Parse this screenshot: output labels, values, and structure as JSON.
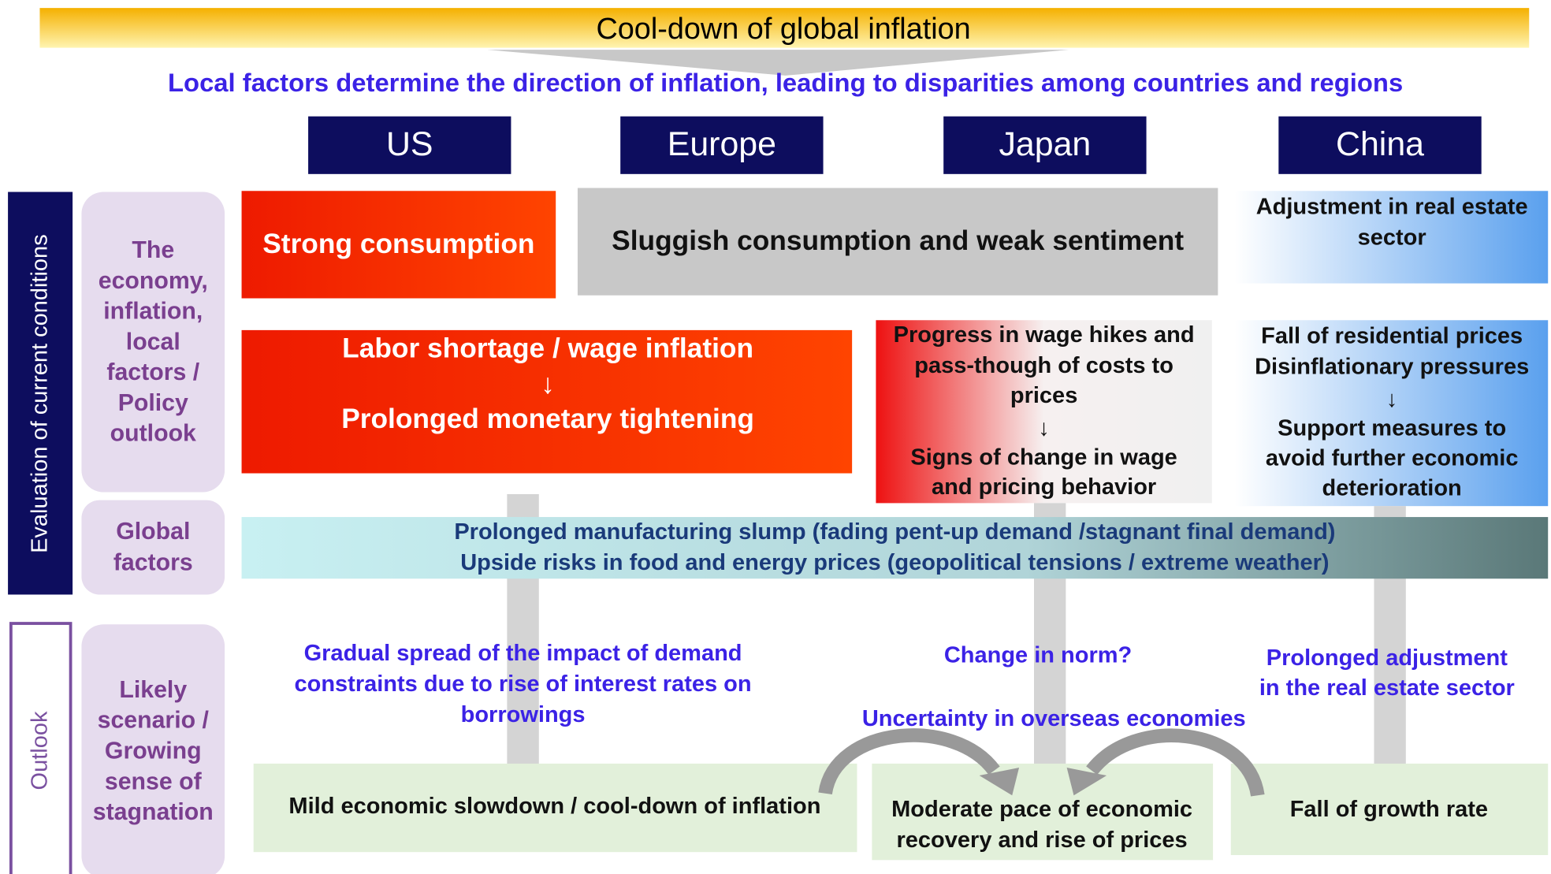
{
  "header": {
    "title": "Cool-down of global inflation",
    "subtitle": "Local factors determine the direction of inflation, leading to disparities among countries and regions"
  },
  "regions": [
    "US",
    "Europe",
    "Japan",
    "China"
  ],
  "side_labels": {
    "current": "Evaluation of current conditions",
    "outlook": "Outlook"
  },
  "row_labels": [
    [
      "The",
      "economy,",
      "inflation,",
      "local",
      "factors /",
      "Policy",
      "outlook"
    ],
    [
      "Global",
      "factors"
    ],
    [
      "Likely",
      "scenario /",
      "Growing",
      "sense of",
      "stagnation"
    ]
  ],
  "blocks": [
    [
      "Strong consumption"
    ],
    [
      "Sluggish consumption and weak sentiment"
    ],
    [
      "Adjustment in real estate",
      "sector"
    ],
    [
      "Labor shortage / wage inflation",
      "↓",
      "Prolonged monetary tightening"
    ],
    [
      "Progress in wage hikes and",
      "pass-though of costs to",
      "prices",
      "↓",
      "Signs of change in wage",
      "and pricing behavior"
    ],
    [
      "Fall of residential prices",
      "Disinflationary pressures",
      "↓",
      "Support measures to",
      "avoid further economic",
      "deterioration"
    ],
    [
      "Prolonged manufacturing slump (fading pent-up demand /stagnant final demand)",
      "Upside risks in food and energy prices (geopolitical tensions / extreme weather)"
    ],
    [
      "Gradual spread of the impact of demand",
      "constraints due to rise of interest rates on",
      "borrowings"
    ],
    [
      "Change in norm?"
    ],
    [
      "Prolonged adjustment",
      "in the real estate sector"
    ],
    [
      "Uncertainty in overseas economies"
    ],
    [
      "Mild economic slowdown / cool-down of inflation"
    ],
    [
      "Moderate pace of economic",
      "recovery and rise of prices"
    ],
    [
      "Fall of growth rate"
    ]
  ]
}
